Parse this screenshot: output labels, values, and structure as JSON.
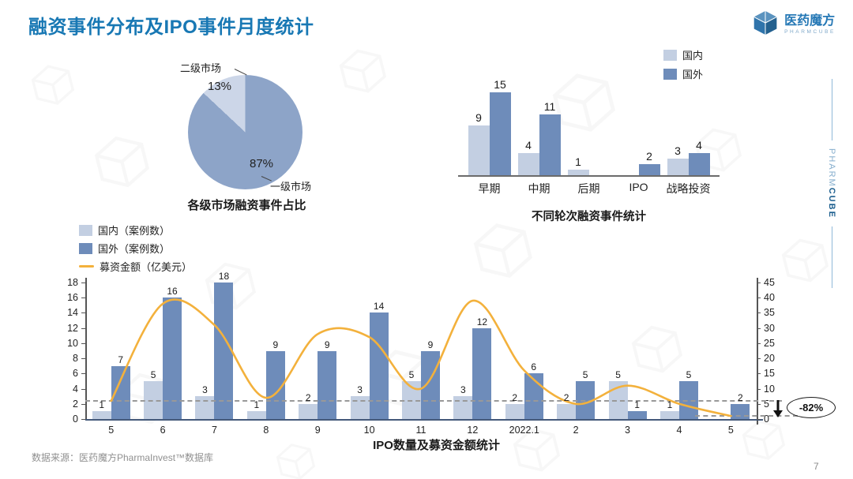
{
  "header": {
    "title": "融资事件分布及IPO事件月度统计"
  },
  "logo": {
    "name": "医药魔方",
    "subtitle": "PHARMCUBE"
  },
  "side_rail": {
    "pharm": "PHARM",
    "cube": "CUBE"
  },
  "footer": {
    "source": "数据来源：医药魔方PharmaInvest™数据库",
    "page_number": "7"
  },
  "colors": {
    "title_blue": "#1878b4",
    "bar_light": "#c3cfe2",
    "bar_dark": "#6e8cba",
    "pie_dark": "#8da4c8",
    "pie_light": "#ccd6e8",
    "line_orange": "#f3b13c",
    "dash_gray": "#999999"
  },
  "chart_data": [
    {
      "type": "pie",
      "title": "各级市场融资事件占比",
      "slices": [
        {
          "label": "一级市场",
          "value": 87,
          "pct_label": "87%",
          "color": "#8da4c8"
        },
        {
          "label": "二级市场",
          "value": 13,
          "pct_label": "13%",
          "color": "#ccd6e8"
        }
      ],
      "legend_position": "none"
    },
    {
      "type": "bar",
      "title": "不同轮次融资事件统计",
      "categories": [
        "早期",
        "中期",
        "后期",
        "IPO",
        "战略投资"
      ],
      "series": [
        {
          "name": "国内",
          "color": "#c3cfe2",
          "values": [
            9,
            4,
            1,
            0,
            3
          ]
        },
        {
          "name": "国外",
          "color": "#6e8cba",
          "values": [
            15,
            11,
            0,
            2,
            4
          ]
        }
      ],
      "ylim": [
        0,
        16
      ],
      "grid": false,
      "legend_position": "top-right"
    },
    {
      "type": "bar",
      "title": "IPO数量及募资金额统计",
      "categories": [
        "5",
        "6",
        "7",
        "8",
        "9",
        "10",
        "11",
        "12",
        "2022.1",
        "2",
        "3",
        "4",
        "5"
      ],
      "series": [
        {
          "name": "国内（案例数）",
          "role": "bar",
          "color": "#c3cfe2",
          "values": [
            1,
            5,
            3,
            1,
            2,
            3,
            5,
            3,
            2,
            2,
            5,
            1,
            0
          ]
        },
        {
          "name": "国外（案例数）",
          "role": "bar",
          "color": "#6e8cba",
          "values": [
            7,
            16,
            18,
            9,
            9,
            14,
            9,
            12,
            6,
            5,
            1,
            5,
            2
          ]
        },
        {
          "name": "募资金额（亿美元）",
          "role": "line",
          "axis": "right",
          "color": "#f3b13c",
          "values": [
            6,
            38,
            31,
            7,
            28,
            27,
            10,
            39,
            16,
            5,
            11,
            5,
            1
          ]
        }
      ],
      "left_axis": {
        "min": 0,
        "max": 18,
        "step": 2
      },
      "right_axis": {
        "min": 0,
        "max": 45,
        "step": 5
      },
      "reference_lines": [
        {
          "axis": "right",
          "value": 6,
          "style": "dashed"
        },
        {
          "axis": "right",
          "value": 1,
          "style": "dashed"
        }
      ],
      "annotation": {
        "text": "-82%",
        "icon": "down-arrow"
      },
      "grid": false,
      "legend_position": "top-left"
    }
  ]
}
